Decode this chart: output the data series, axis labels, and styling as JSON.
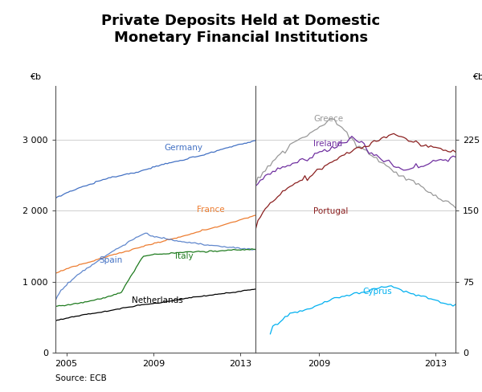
{
  "title": "Private Deposits Held at Domestic\nMonetary Financial Institutions",
  "title_fontsize": 13,
  "source": "Source: ECB",
  "left_ylabel": "€b",
  "right_ylabel": "€b",
  "left_ylim": [
    0,
    3750
  ],
  "right_ylim": [
    0,
    281.25
  ],
  "left_yticks": [
    0,
    1000,
    2000,
    3000
  ],
  "right_yticks": [
    0,
    75,
    150,
    225
  ],
  "left_xticks": [
    2005,
    2009,
    2013
  ],
  "right_xticks": [
    2009,
    2013
  ],
  "left_xlim": [
    2004.5,
    2013.7
  ],
  "right_xlim": [
    2006.8,
    2013.7
  ],
  "grid_color": "#c8c8c8",
  "background_color": "#ffffff",
  "germany_color": "#4472c4",
  "france_color": "#ed7d31",
  "spain_color": "#4472c4",
  "italy_color": "#1e7b1e",
  "netherlands_color": "#000000",
  "greece_color": "#999999",
  "ireland_color": "#7030a0",
  "portugal_color": "#8b2020",
  "cyprus_color": "#00b0f0"
}
